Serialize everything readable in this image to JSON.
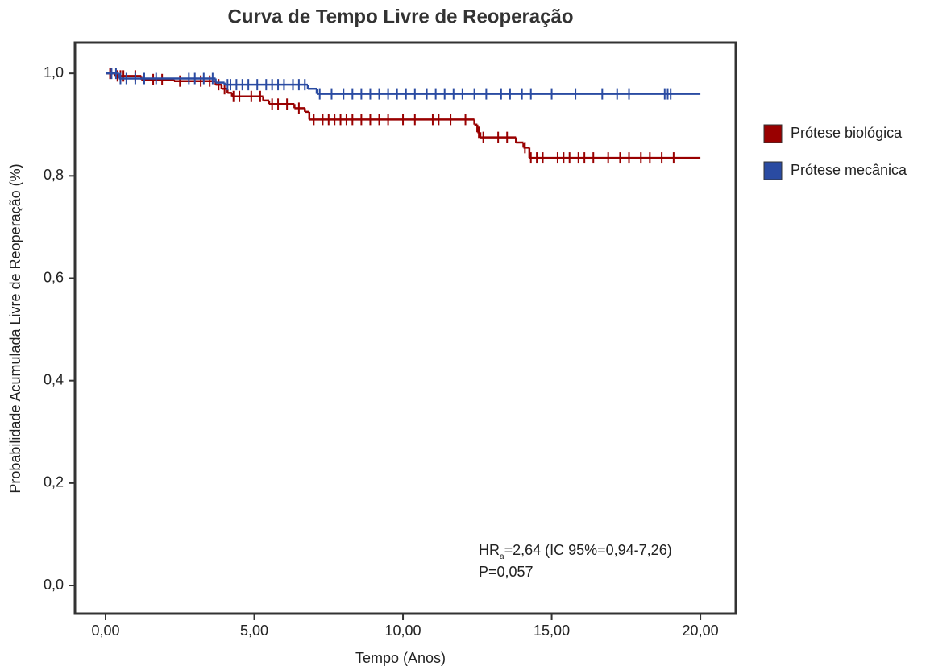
{
  "chart_data": {
    "type": "line",
    "step": "post",
    "title": "Curva de Tempo Livre de Reoperação",
    "x_label": "Tempo (Anos)",
    "y_label": "Probabilidade Acumulada Livre de Reoperação (%)",
    "xlim": [
      -1.03,
      21.19
    ],
    "ylim": [
      -0.055,
      1.06
    ],
    "xticks": [
      {
        "value": 0,
        "label": "0,00"
      },
      {
        "value": 5,
        "label": "5,00"
      },
      {
        "value": 10,
        "label": "10,00"
      },
      {
        "value": 15,
        "label": "15,00"
      },
      {
        "value": 20,
        "label": "20,00"
      }
    ],
    "yticks": [
      {
        "value": 0,
        "label": "0,0"
      },
      {
        "value": 0.2,
        "label": "0,2"
      },
      {
        "value": 0.4,
        "label": "0,4"
      },
      {
        "value": 0.6,
        "label": "0,6"
      },
      {
        "value": 0.8,
        "label": "0,8"
      },
      {
        "value": 1,
        "label": "1,0"
      }
    ],
    "legend": "right",
    "annotation": {
      "hr": "HR",
      "hr_sub": "a",
      "hr_rest": "=2,64 (IC 95%=0,94-7,26)",
      "p": "P=0,057"
    },
    "series": [
      {
        "name": "Prótese biológica",
        "color": "#990000",
        "x": [
          0,
          0.33,
          1.2,
          2.3,
          3.7,
          3.9,
          4.1,
          4.25,
          5.3,
          5.5,
          6.35,
          6.7,
          6.85,
          12.4,
          12.5,
          12.6,
          13.8,
          14.05,
          14.25,
          20
        ],
        "values": [
          1.0,
          0.995,
          0.988,
          0.985,
          0.978,
          0.97,
          0.962,
          0.955,
          0.947,
          0.94,
          0.932,
          0.925,
          0.91,
          0.9,
          0.885,
          0.875,
          0.865,
          0.855,
          0.835,
          0.835
        ],
        "censor_x": [
          0.15,
          0.4,
          0.5,
          0.6,
          1.0,
          1.6,
          1.9,
          2.5,
          3.2,
          3.5,
          3.8,
          4.0,
          4.3,
          4.5,
          4.9,
          5.2,
          5.6,
          5.8,
          6.1,
          6.5,
          7.0,
          7.3,
          7.5,
          7.7,
          7.9,
          8.1,
          8.3,
          8.6,
          8.9,
          9.2,
          9.5,
          10.0,
          10.4,
          11.0,
          11.2,
          11.6,
          12.1,
          12.55,
          12.7,
          13.2,
          13.5,
          14.1,
          14.3,
          14.5,
          14.7,
          15.2,
          15.4,
          15.6,
          15.9,
          16.1,
          16.4,
          16.9,
          17.3,
          17.6,
          18.0,
          18.3,
          18.7,
          19.1
        ]
      },
      {
        "name": "Prótese mecânica",
        "color": "#2a4ba2",
        "x": [
          0,
          0.45,
          3.7,
          4.0,
          6.8,
          7.1,
          20
        ],
        "values": [
          1.0,
          0.99,
          0.982,
          0.978,
          0.97,
          0.96,
          0.96
        ],
        "censor_x": [
          0.2,
          0.35,
          0.5,
          0.7,
          1.0,
          1.3,
          1.7,
          2.8,
          3.0,
          3.3,
          3.6,
          4.1,
          4.2,
          4.4,
          4.6,
          4.8,
          5.1,
          5.4,
          5.6,
          5.8,
          6.0,
          6.3,
          6.5,
          6.7,
          7.2,
          7.6,
          8.0,
          8.3,
          8.6,
          8.9,
          9.2,
          9.5,
          9.8,
          10.1,
          10.4,
          10.8,
          11.1,
          11.4,
          11.7,
          12.0,
          12.4,
          12.8,
          13.3,
          13.6,
          14.0,
          14.3,
          15.0,
          15.8,
          16.7,
          17.2,
          17.6,
          18.8,
          18.9,
          19.0
        ]
      }
    ]
  }
}
